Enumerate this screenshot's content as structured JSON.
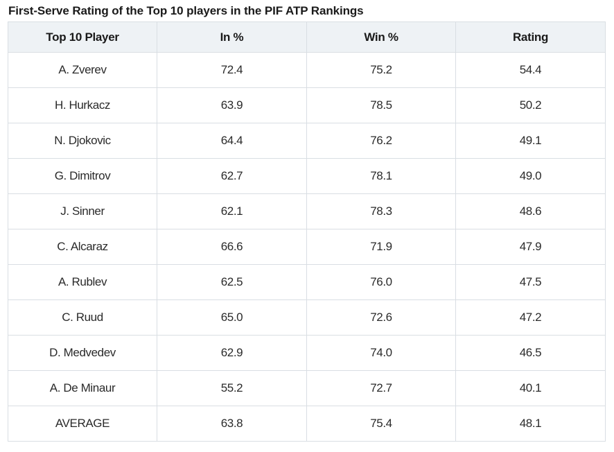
{
  "title": "First-Serve Rating of the Top 10 players in the PIF ATP Rankings",
  "chart_data": {
    "type": "table",
    "title": "First-Serve Rating of the Top 10 players in the PIF ATP Rankings",
    "columns": [
      "Top 10 Player",
      "In %",
      "Win %",
      "Rating"
    ],
    "rows": [
      [
        "A. Zverev",
        "72.4",
        "75.2",
        "54.4"
      ],
      [
        "H. Hurkacz",
        "63.9",
        "78.5",
        "50.2"
      ],
      [
        "N. Djokovic",
        "64.4",
        "76.2",
        "49.1"
      ],
      [
        "G. Dimitrov",
        "62.7",
        "78.1",
        "49.0"
      ],
      [
        "J. Sinner",
        "62.1",
        "78.3",
        "48.6"
      ],
      [
        "C. Alcaraz",
        "66.6",
        "71.9",
        "47.9"
      ],
      [
        "A. Rublev",
        "62.5",
        "76.0",
        "47.5"
      ],
      [
        "C. Ruud",
        "65.0",
        "72.6",
        "47.2"
      ],
      [
        "D. Medvedev",
        "62.9",
        "74.0",
        "46.5"
      ],
      [
        "A. De Minaur",
        "55.2",
        "72.7",
        "40.1"
      ],
      [
        "AVERAGE",
        "63.8",
        "75.4",
        "48.1"
      ]
    ]
  }
}
